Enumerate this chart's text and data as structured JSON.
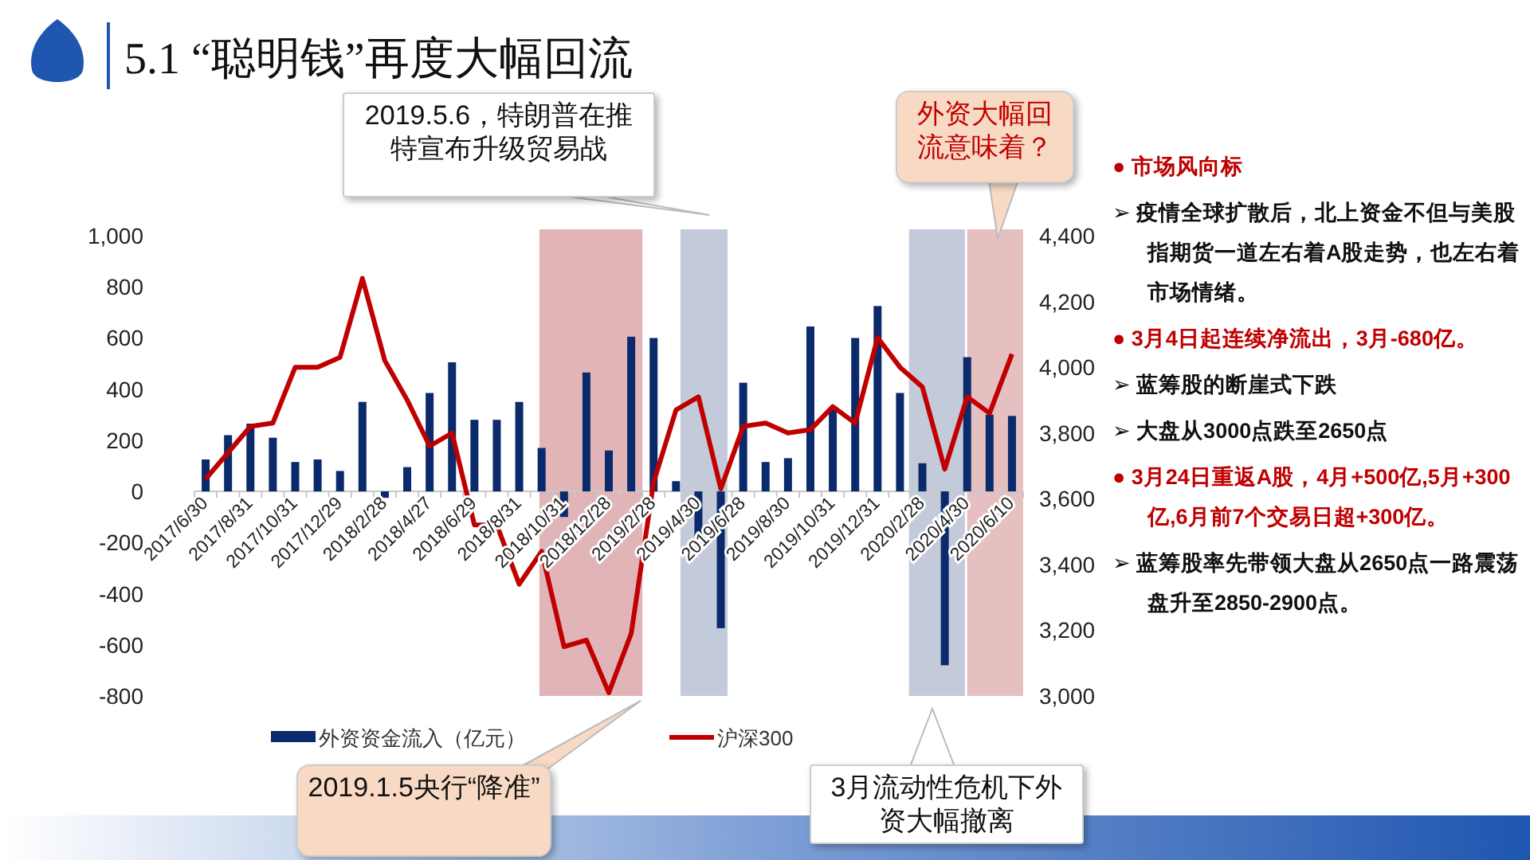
{
  "chart_data": [
    {
      "type": "bar",
      "title": "5.1 “聪明钱”再度大幅回流",
      "categories": [
        "2017/6/30",
        null,
        "2017/8/31",
        null,
        "2017/10/31",
        null,
        "2017/12/29",
        null,
        "2018/2/28",
        null,
        "2018/4/27",
        null,
        "2018/6/29",
        null,
        "2018/8/31",
        null,
        "2018/10/31",
        null,
        "2018/12/28",
        null,
        "2019/2/28",
        null,
        "2019/4/30",
        null,
        "2019/6/28",
        null,
        "2019/8/30",
        null,
        "2019/10/31",
        null,
        "2019/12/31",
        null,
        "2020/2/28",
        null,
        "2020/4/30",
        null,
        "2020/6/10"
      ],
      "series": [
        {
          "name": "外资资金流入（亿元）",
          "type": "bar",
          "color": "#0b2a6b",
          "values": [
            125,
            220,
            265,
            210,
            115,
            125,
            80,
            350,
            -25,
            95,
            385,
            505,
            280,
            280,
            350,
            170,
            -100,
            465,
            160,
            605,
            600,
            40,
            -175,
            -535,
            425,
            115,
            130,
            645,
            325,
            600,
            725,
            385,
            110,
            -680,
            525,
            300,
            295
          ]
        },
        {
          "name": "沪深300",
          "type": "line",
          "axis": "y2",
          "color": "#c00000",
          "values": [
            3660,
            3740,
            3820,
            3830,
            4000,
            4000,
            4030,
            4270,
            4020,
            3900,
            3760,
            3800,
            3520,
            3520,
            3340,
            3440,
            3150,
            3170,
            3010,
            3190,
            3650,
            3870,
            3910,
            3630,
            3820,
            3830,
            3800,
            3810,
            3880,
            3830,
            4090,
            4000,
            3940,
            3690,
            3910,
            3860,
            4040
          ]
        }
      ],
      "ylim": [
        -800,
        1000
      ],
      "yticks": [
        -800,
        -600,
        -400,
        -200,
        0,
        200,
        400,
        600,
        800,
        {
          "value": 1000,
          "label": "1,000"
        }
      ],
      "y2lim": [
        3000,
        4400
      ],
      "y2ticks": [
        {
          "value": 3000,
          "label": "3,000"
        },
        {
          "value": 3200,
          "label": "3,200"
        },
        {
          "value": 3400,
          "label": "3,400"
        },
        {
          "value": 3600,
          "label": "3,600"
        },
        {
          "value": 3800,
          "label": "3,800"
        },
        {
          "value": 4000,
          "label": "4,000"
        },
        {
          "value": 4200,
          "label": "4,200"
        },
        {
          "value": 4400,
          "label": "4,400"
        }
      ],
      "legend": "bottom",
      "grid": false,
      "annotations": [
        "2019.5.6，特朗普在推特宣布升级贸易战",
        "外资大幅回流意味着？",
        "2019.1.5央行“降准”",
        "3月流动性危机下外资大幅撤离"
      ]
    },
    {
      "type": "other",
      "annotations": [
        "● 市场风向标",
        "➢ 疫情全球扩散后，北上资金不但与美股指期货一道左右着A股走势，也左右着市场情绪。",
        "● 3月4日起连续净流出，3月-680亿。",
        "➢ 蓝筹股的断崖式下跌",
        "➢ 大盘从3000点跌至2650点",
        "● 3月24日重返A股，4月+500亿,5月+300亿,6月前7个交易日超+300亿。",
        "➢ 蓝筹股率先带领大盘从2650点一路震荡盘升至2850-2900点。"
      ]
    }
  ]
}
